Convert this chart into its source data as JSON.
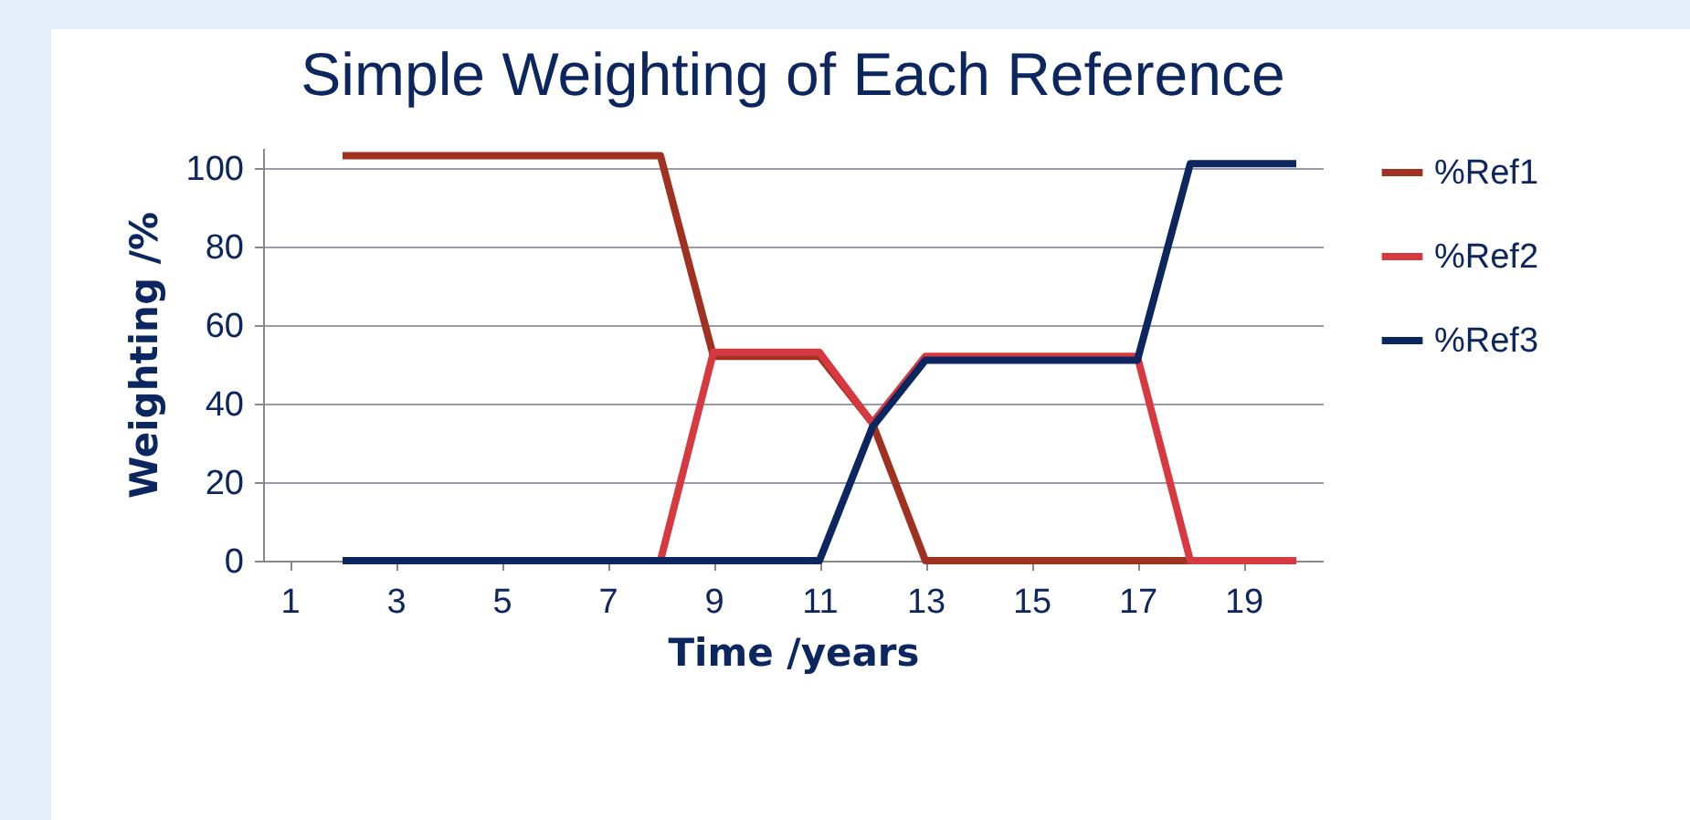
{
  "chart_data": {
    "type": "line",
    "title": "Simple Weighting of Each Reference",
    "xlabel": "Time /years",
    "ylabel": "Weighting /%",
    "x": [
      2,
      3,
      4,
      5,
      6,
      7,
      8,
      9,
      10,
      11,
      12,
      13,
      14,
      15,
      16,
      17,
      18,
      19,
      20
    ],
    "series": [
      {
        "name": "%Ref1",
        "color": "#a0301f",
        "values": [
          103,
          103,
          103,
          103,
          103,
          103,
          103,
          52,
          52,
          52,
          35,
          0,
          0,
          0,
          0,
          0,
          0,
          0,
          0
        ]
      },
      {
        "name": "%Ref2",
        "color": "#d63a40",
        "values": [
          null,
          null,
          null,
          null,
          null,
          null,
          0,
          53,
          53,
          53,
          35,
          52,
          52,
          52,
          52,
          52,
          0,
          0,
          0
        ]
      },
      {
        "name": "%Ref3",
        "color": "#0c2660",
        "values": [
          0,
          0,
          0,
          0,
          0,
          0,
          0,
          0,
          0,
          0,
          34,
          51,
          51,
          51,
          51,
          51,
          101,
          101,
          101
        ]
      }
    ],
    "xlim": [
      0.5,
      20.5
    ],
    "xticks": [
      1,
      3,
      5,
      7,
      9,
      11,
      13,
      15,
      17,
      19
    ],
    "ylim": [
      0,
      105
    ],
    "yticks": [
      0,
      20,
      40,
      60,
      80,
      100
    ],
    "grid": "y",
    "legend": "right"
  }
}
